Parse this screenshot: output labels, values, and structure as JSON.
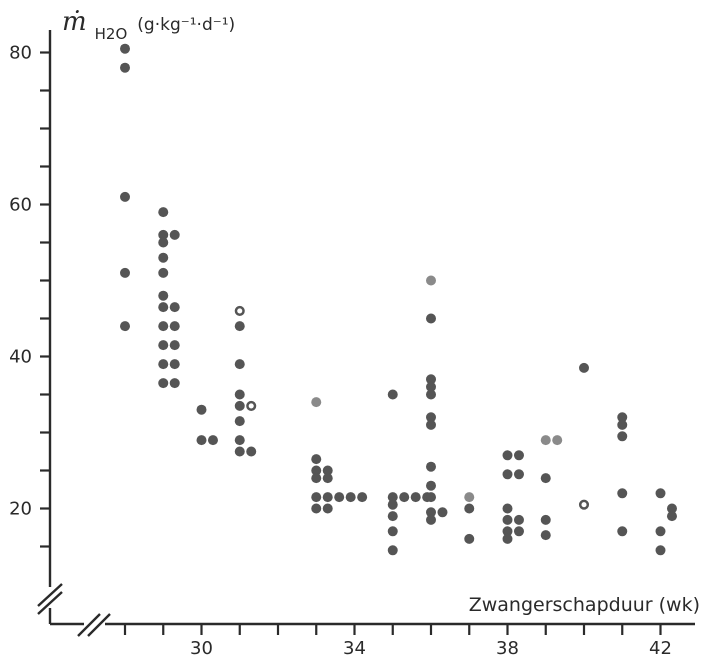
{
  "chart_data": {
    "type": "scatter",
    "title": "",
    "ylabel": "ṁ H2O (g·kg⁻¹·d⁻¹)",
    "ylabel_parts": {
      "symbol": "ṁ",
      "subscript": "H2O",
      "units": "(g·kg⁻¹·d⁻¹)"
    },
    "xlabel": "Zwangerschapduur (wk)",
    "xlim": [
      27,
      43
    ],
    "ylim": [
      10,
      85
    ],
    "axis_break": true,
    "grid": false,
    "x_ticks": [
      28,
      29,
      30,
      31,
      32,
      33,
      34,
      35,
      36,
      37,
      38,
      39,
      40,
      41,
      42
    ],
    "x_tick_labels": [
      {
        "value": 30,
        "label": "30"
      },
      {
        "value": 34,
        "label": "34"
      },
      {
        "value": 38,
        "label": "38"
      },
      {
        "value": 42,
        "label": "42"
      }
    ],
    "y_ticks": [
      15,
      20,
      25,
      30,
      35,
      40,
      45,
      50,
      55,
      60,
      65,
      70,
      75,
      80
    ],
    "y_tick_labels": [
      {
        "value": 20,
        "label": "20"
      },
      {
        "value": 40,
        "label": "40"
      },
      {
        "value": 60,
        "label": "60"
      },
      {
        "value": 80,
        "label": "80"
      }
    ],
    "points": [
      [
        28.0,
        80.5
      ],
      [
        28.0,
        78.0
      ],
      [
        28.0,
        61.0
      ],
      [
        28.0,
        51.0
      ],
      [
        28.0,
        44.0
      ],
      [
        29.0,
        59.0
      ],
      [
        29.0,
        56.0
      ],
      [
        29.3,
        56.0
      ],
      [
        29.0,
        55.0
      ],
      [
        29.0,
        53.0
      ],
      [
        29.0,
        51.0
      ],
      [
        29.0,
        48.0
      ],
      [
        29.0,
        46.5
      ],
      [
        29.3,
        46.5
      ],
      [
        29.0,
        44.0
      ],
      [
        29.3,
        44.0
      ],
      [
        29.0,
        41.5
      ],
      [
        29.3,
        41.5
      ],
      [
        29.0,
        39.0
      ],
      [
        29.3,
        39.0
      ],
      [
        29.0,
        36.5
      ],
      [
        29.3,
        36.5
      ],
      [
        30.0,
        33.0
      ],
      [
        30.0,
        29.0
      ],
      [
        30.3,
        29.0
      ],
      [
        31.0,
        46.0,
        "open"
      ],
      [
        31.0,
        44.0
      ],
      [
        31.0,
        39.0
      ],
      [
        31.0,
        35.0
      ],
      [
        31.0,
        33.5
      ],
      [
        31.3,
        33.5,
        "open"
      ],
      [
        31.0,
        31.5
      ],
      [
        31.0,
        29.0
      ],
      [
        31.0,
        27.5
      ],
      [
        31.3,
        27.5
      ],
      [
        33.0,
        34.0,
        "light"
      ],
      [
        33.0,
        26.5
      ],
      [
        33.0,
        25.0
      ],
      [
        33.3,
        25.0
      ],
      [
        33.0,
        24.0
      ],
      [
        33.3,
        24.0
      ],
      [
        33.0,
        21.5
      ],
      [
        33.3,
        21.5
      ],
      [
        33.6,
        21.5
      ],
      [
        33.9,
        21.5
      ],
      [
        34.2,
        21.5
      ],
      [
        33.0,
        20.0
      ],
      [
        33.3,
        20.0
      ],
      [
        35.0,
        35.0
      ],
      [
        35.0,
        21.5
      ],
      [
        35.3,
        21.5
      ],
      [
        35.6,
        21.5
      ],
      [
        35.9,
        21.5
      ],
      [
        35.0,
        20.5
      ],
      [
        35.0,
        19.0
      ],
      [
        35.0,
        17.0
      ],
      [
        35.0,
        14.5
      ],
      [
        36.0,
        50.0,
        "light"
      ],
      [
        36.0,
        45.0
      ],
      [
        36.0,
        37.0
      ],
      [
        36.0,
        36.0
      ],
      [
        36.0,
        35.0
      ],
      [
        36.0,
        32.0
      ],
      [
        36.0,
        31.0
      ],
      [
        36.0,
        25.5
      ],
      [
        36.0,
        23.0
      ],
      [
        36.0,
        21.5
      ],
      [
        36.0,
        19.5
      ],
      [
        36.3,
        19.5
      ],
      [
        36.0,
        18.5
      ],
      [
        37.0,
        21.5,
        "light"
      ],
      [
        37.0,
        20.0
      ],
      [
        37.0,
        16.0
      ],
      [
        38.0,
        27.0
      ],
      [
        38.3,
        27.0
      ],
      [
        38.0,
        24.5
      ],
      [
        38.3,
        24.5
      ],
      [
        38.0,
        20.0
      ],
      [
        38.0,
        18.5
      ],
      [
        38.3,
        18.5
      ],
      [
        38.0,
        17.0
      ],
      [
        38.3,
        17.0
      ],
      [
        38.0,
        16.0
      ],
      [
        39.0,
        29.0,
        "light"
      ],
      [
        39.3,
        29.0,
        "light"
      ],
      [
        39.0,
        24.0
      ],
      [
        39.0,
        18.5
      ],
      [
        39.0,
        16.5
      ],
      [
        40.0,
        38.5
      ],
      [
        40.0,
        20.5,
        "open"
      ],
      [
        41.0,
        32.0
      ],
      [
        41.0,
        31.0
      ],
      [
        41.0,
        29.5
      ],
      [
        41.0,
        22.0
      ],
      [
        41.0,
        17.0
      ],
      [
        42.0,
        22.0
      ],
      [
        42.3,
        20.0
      ],
      [
        42.3,
        19.0
      ],
      [
        42.0,
        17.0
      ],
      [
        42.0,
        14.5
      ]
    ]
  }
}
